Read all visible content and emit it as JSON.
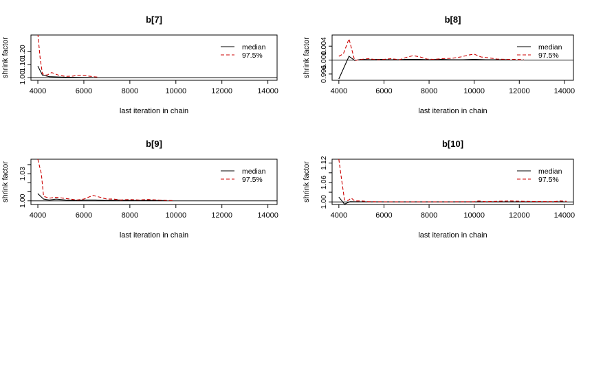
{
  "colors": {
    "median": "#000000",
    "q975": "#cc0000",
    "axis": "#000000",
    "background": "#ffffff"
  },
  "chart_data": [
    {
      "type": "line",
      "title": "b[7]",
      "xlabel": "last iteration in chain",
      "ylabel": "shrink factor",
      "xlim": [
        3700,
        14400
      ],
      "ylim": [
        0.98,
        1.33
      ],
      "xticks": [
        4000,
        6000,
        8000,
        10000,
        12000,
        14000
      ],
      "xtick_labels": [
        "4000",
        "6000",
        "8000",
        "10000",
        "12000",
        "14000"
      ],
      "yticks": [
        1.0,
        1.1,
        1.2
      ],
      "ytick_labels": [
        "1.00",
        "1.10",
        "1.20"
      ],
      "hline": 1.0,
      "grid": false,
      "legend": {
        "position": "top-right",
        "entries": [
          "median",
          "97.5%"
        ]
      },
      "series": [
        {
          "name": "median",
          "style": "solid",
          "x": [
            4000,
            4200,
            4500,
            4800,
            5200,
            5600,
            6000,
            6400
          ],
          "y": [
            1.09,
            1.02,
            1.008,
            1.006,
            1.004,
            1.003,
            1.002,
            1.001
          ]
        },
        {
          "name": "97.5%",
          "style": "dashed",
          "x": [
            4000,
            4100,
            4200,
            4400,
            4600,
            4900,
            5200,
            5500,
            5800,
            6100,
            6400,
            6600
          ],
          "y": [
            1.34,
            1.15,
            1.03,
            1.02,
            1.04,
            1.02,
            1.01,
            1.012,
            1.02,
            1.015,
            1.008,
            1.005
          ]
        }
      ]
    },
    {
      "type": "line",
      "title": "b[8]",
      "xlabel": "last iteration in chain",
      "ylabel": "shrink factor",
      "xlim": [
        3700,
        14400
      ],
      "ylim": [
        0.9942,
        1.0072
      ],
      "xticks": [
        4000,
        6000,
        8000,
        10000,
        12000,
        14000
      ],
      "xtick_labels": [
        "4000",
        "6000",
        "8000",
        "10000",
        "12000",
        "14000"
      ],
      "yticks": [
        0.996,
        1.0,
        1.004
      ],
      "ytick_labels": [
        "0.996",
        "1.000",
        "1.004"
      ],
      "hline": 1.0,
      "grid": false,
      "legend": {
        "position": "top-right",
        "entries": [
          "median",
          "97.5%"
        ]
      },
      "series": [
        {
          "name": "median",
          "style": "solid",
          "x": [
            4000,
            4450,
            4700,
            5000,
            5400,
            5800,
            6200,
            6600,
            7000,
            7500,
            8000,
            8500,
            9000,
            9500,
            10000,
            10500,
            11000,
            11500
          ],
          "y": [
            0.9946,
            1.0011,
            0.9999,
            1.0002,
            1.0001,
            1.0002,
            1.0001,
            1.0001,
            1.0002,
            1.0002,
            1.0001,
            1.0002,
            1.0001,
            1.0001,
            1.0002,
            1.0001,
            1.0001,
            1.0001
          ]
        },
        {
          "name": "97.5%",
          "style": "dashed",
          "x": [
            4000,
            4200,
            4450,
            4700,
            5000,
            5300,
            5700,
            6000,
            6300,
            6700,
            7000,
            7300,
            7600,
            7900,
            8200,
            8600,
            9000,
            9400,
            9800,
            10000,
            10300,
            10700,
            11000,
            11400,
            11800,
            12200
          ],
          "y": [
            1.0011,
            1.0018,
            1.0061,
            0.9999,
            1.0002,
            1.0004,
            1.0001,
            1.0002,
            1.0004,
            1.0001,
            1.0008,
            1.0013,
            1.0009,
            1.0003,
            1.0002,
            1.0004,
            1.0005,
            1.0009,
            1.0015,
            1.0017,
            1.0009,
            1.0006,
            1.0003,
            1.0002,
            1.0002,
            1.0001
          ]
        }
      ]
    },
    {
      "type": "line",
      "title": "b[9]",
      "xlabel": "last iteration in chain",
      "ylabel": "shrink factor",
      "xlim": [
        3700,
        14400
      ],
      "ylim": [
        0.996,
        1.046
      ],
      "xticks": [
        4000,
        6000,
        8000,
        10000,
        12000,
        14000
      ],
      "xtick_labels": [
        "4000",
        "6000",
        "8000",
        "10000",
        "12000",
        "14000"
      ],
      "yticks": [
        1.0,
        1.01,
        1.02,
        1.03,
        1.04
      ],
      "ytick_labels": [
        "1.00",
        "",
        "",
        "1.03",
        ""
      ],
      "hline": 1.0,
      "grid": false,
      "legend": {
        "position": "top-right",
        "entries": [
          "median",
          "97.5%"
        ]
      },
      "series": [
        {
          "name": "median",
          "style": "solid",
          "x": [
            4000,
            4250,
            4500,
            4800,
            5200,
            5600,
            6000,
            6500,
            7000,
            7500,
            8000,
            8500,
            9000,
            9500
          ],
          "y": [
            1.008,
            1.002,
            1.001,
            1.002,
            1.001,
            1.0005,
            1.001,
            1.001,
            1.0005,
            1.001,
            1.0005,
            1.0005,
            1.0005,
            1.0003
          ]
        },
        {
          "name": "97.5%",
          "style": "dashed",
          "x": [
            4000,
            4150,
            4250,
            4500,
            4800,
            5100,
            5400,
            5700,
            6000,
            6200,
            6400,
            6700,
            7000,
            7300,
            7600,
            8000,
            8400,
            8800,
            9200,
            9600,
            9900
          ],
          "y": [
            1.046,
            1.03,
            1.005,
            1.003,
            1.004,
            1.003,
            1.002,
            1.001,
            1.002,
            1.004,
            1.006,
            1.004,
            1.002,
            1.002,
            1.001,
            1.0015,
            1.001,
            1.0015,
            1.001,
            1.0005,
            1.0003
          ]
        }
      ]
    },
    {
      "type": "line",
      "title": "b[10]",
      "xlabel": "last iteration in chain",
      "ylabel": "shrink factor",
      "xlim": [
        3700,
        14400
      ],
      "ylim": [
        0.992,
        1.132
      ],
      "xticks": [
        4000,
        6000,
        8000,
        10000,
        12000,
        14000
      ],
      "xtick_labels": [
        "4000",
        "6000",
        "8000",
        "10000",
        "12000",
        "14000"
      ],
      "yticks": [
        1.0,
        1.03,
        1.06,
        1.09,
        1.12
      ],
      "ytick_labels": [
        "1.00",
        "",
        "1.06",
        "",
        "1.12"
      ],
      "hline": 1.0,
      "grid": false,
      "legend": {
        "position": "top-right",
        "entries": [
          "median",
          "97.5%"
        ]
      },
      "series": [
        {
          "name": "median",
          "style": "solid",
          "x": [
            4000,
            4250,
            4500,
            5000,
            6000,
            8000,
            10000,
            12000,
            14000
          ],
          "y": [
            1.015,
            0.993,
            1.001,
            1.0005,
            1.0003,
            1.0002,
            1.0002,
            1.0002,
            1.0002
          ]
        },
        {
          "name": "97.5%",
          "style": "dashed",
          "x": [
            4000,
            4100,
            4250,
            4400,
            4550,
            4700,
            5000,
            5300,
            6000,
            8000,
            10000,
            10200,
            10500,
            11000,
            11600,
            12200,
            13500,
            13800,
            14100
          ],
          "y": [
            1.132,
            1.08,
            1.006,
            1.004,
            1.012,
            1.003,
            1.003,
            1.001,
            1.0005,
            1.0003,
            1.0008,
            1.003,
            1.001,
            1.002,
            1.003,
            1.002,
            1.001,
            1.003,
            1.002
          ]
        }
      ]
    }
  ]
}
